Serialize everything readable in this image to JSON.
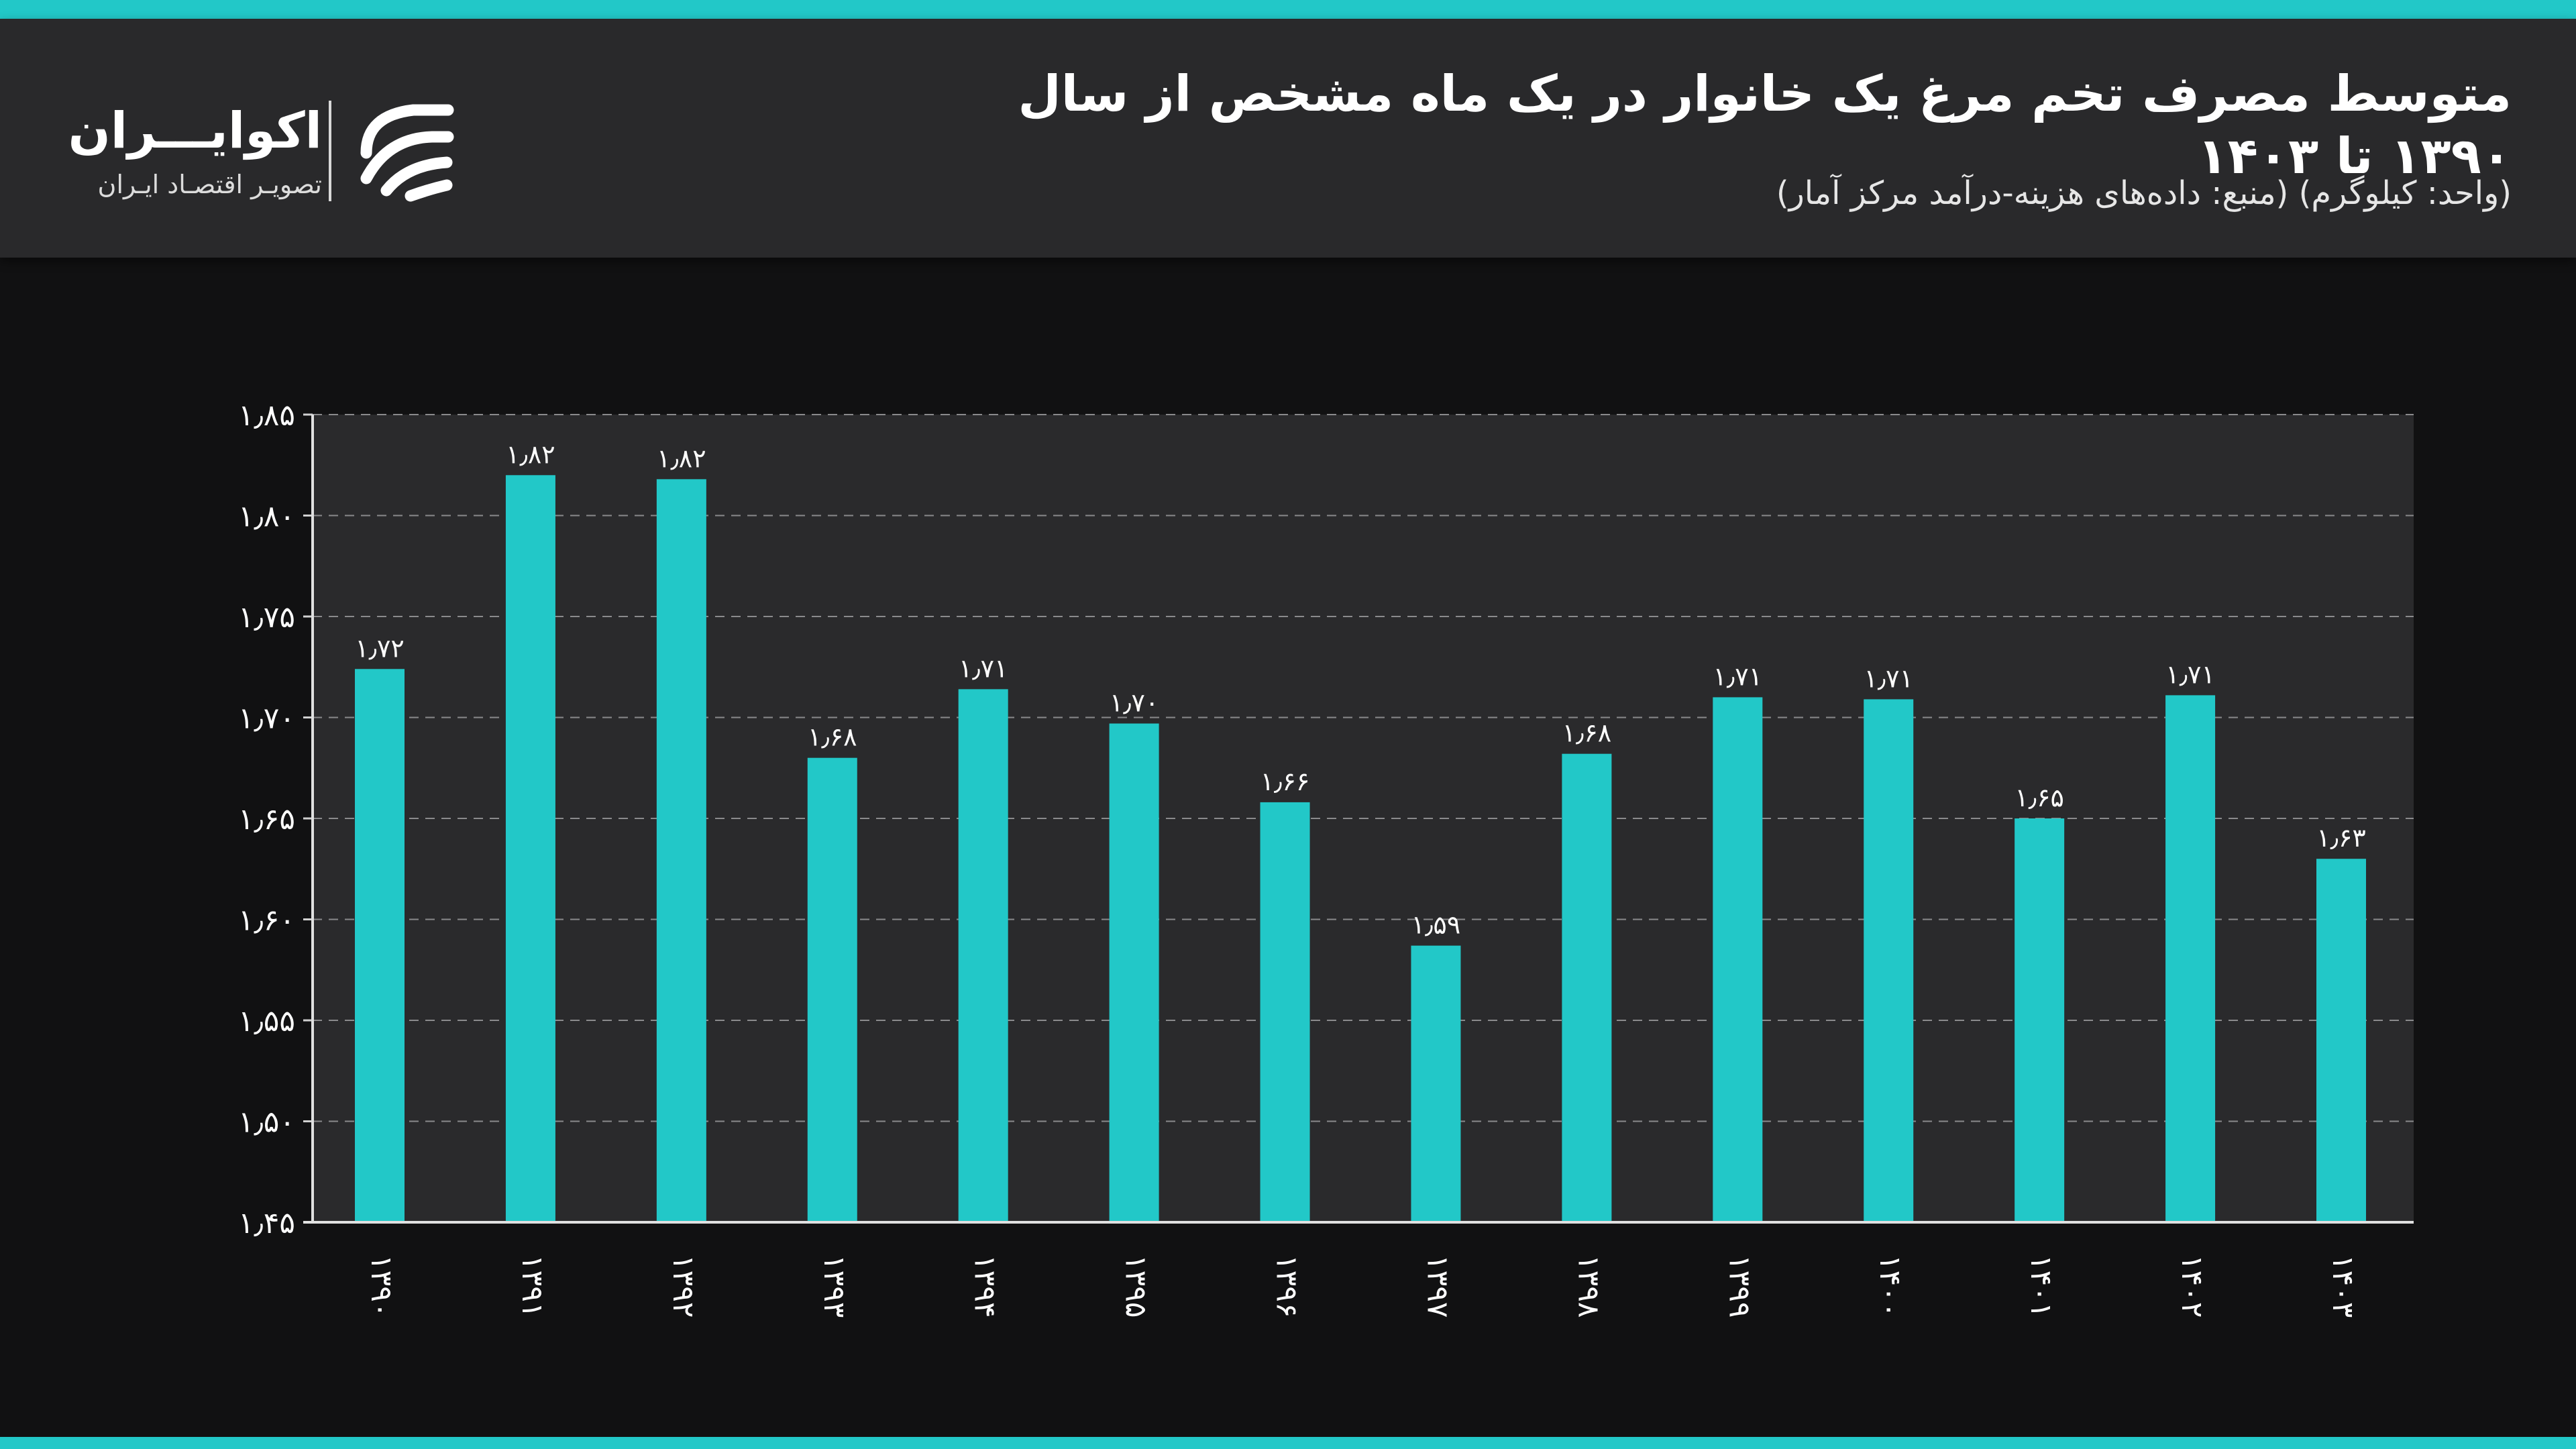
{
  "header": {
    "title": "متوسط مصرف تخم مرغ یک خانوار در یک ماه مشخص از سال ۱۳۹۰ تا ۱۴۰۳",
    "subtitle": "(واحد: کیلوگرم) (منبع: داده‌های هزینه-درآمد مرکز آمار)"
  },
  "logo": {
    "name": "اکوایـــران",
    "tagline": "تصویـر اقتصـاد ایـران",
    "icon": "ecoiran-logo-icon"
  },
  "colors": {
    "accent": "#22c8c8",
    "bar": "#22c8c8",
    "background": "#111112",
    "header_bg": "#29292b",
    "plot_bg": "#2a2a2c",
    "text": "#ffffff"
  },
  "chart_data": {
    "type": "bar",
    "title": "",
    "xlabel": "",
    "ylabel": "",
    "categories": [
      "۱۳۹۰",
      "۱۳۹۱",
      "۱۳۹۲",
      "۱۳۹۳",
      "۱۳۹۴",
      "۱۳۹۵",
      "۱۳۹۶",
      "۱۳۹۷",
      "۱۳۹۸",
      "۱۳۹۹",
      "۱۴۰۰",
      "۱۴۰۱",
      "۱۴۰۲",
      "۱۴۰۳"
    ],
    "values": [
      1.724,
      1.82,
      1.818,
      1.68,
      1.714,
      1.697,
      1.658,
      1.587,
      1.682,
      1.71,
      1.709,
      1.65,
      1.711,
      1.63
    ],
    "value_labels": [
      "۱٫۷۲",
      "۱٫۸۲",
      "۱٫۸۲",
      "۱٫۶۸",
      "۱٫۷۱",
      "۱٫۷۰",
      "۱٫۶۶",
      "۱٫۵۹",
      "۱٫۶۸",
      "۱٫۷۱",
      "۱٫۷۱",
      "۱٫۶۵",
      "۱٫۷۱",
      "۱٫۶۳"
    ],
    "ylim": [
      1.45,
      1.85
    ],
    "yticks": [
      1.45,
      1.5,
      1.55,
      1.6,
      1.65,
      1.7,
      1.75,
      1.8,
      1.85
    ],
    "ytick_labels": [
      "۱٫۴۵",
      "۱٫۵۰",
      "۱٫۵۵",
      "۱٫۶۰",
      "۱٫۶۵",
      "۱٫۷۰",
      "۱٫۷۵",
      "۱٫۸۰",
      "۱٫۸۵"
    ],
    "grid": true,
    "legend": "none"
  }
}
